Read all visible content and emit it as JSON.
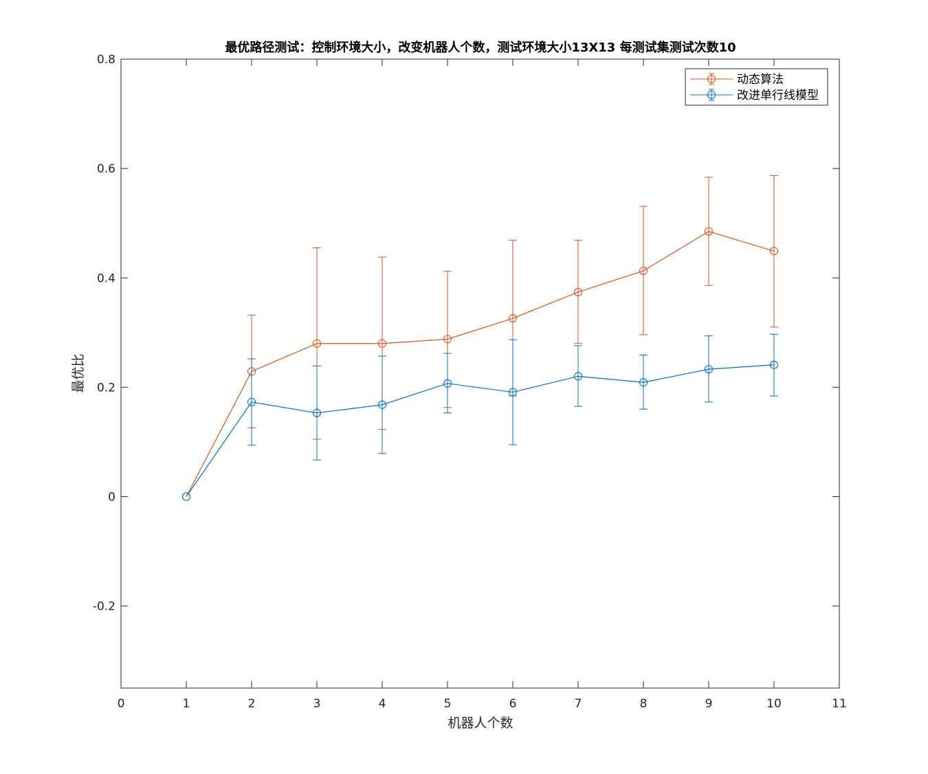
{
  "chart_data": {
    "type": "line",
    "title": "最优路径测试：控制环境大小，改变机器人个数，测试环境大小13X13 每测试集测试次数10",
    "xlabel": "机器人个数",
    "ylabel": "最优比",
    "xlim": [
      0,
      11
    ],
    "ylim": [
      -0.35,
      0.8
    ],
    "xticks": [
      0,
      1,
      2,
      3,
      4,
      5,
      6,
      7,
      8,
      9,
      10,
      11
    ],
    "xtick_labels": [
      "0",
      "1",
      "2",
      "3",
      "4",
      "5",
      "6",
      "7",
      "8",
      "9",
      "10",
      "11"
    ],
    "yticks": [
      -0.2,
      0,
      0.2,
      0.4,
      0.6,
      0.8
    ],
    "ytick_labels": [
      "-0.2",
      "0",
      "0.2",
      "0.4",
      "0.6",
      "0.8"
    ],
    "grid": false,
    "legend_position": "top-right",
    "x": [
      1,
      2,
      3,
      4,
      5,
      6,
      7,
      8,
      9,
      10
    ],
    "series": [
      {
        "name": "动态算法",
        "color": "#D95319",
        "values": [
          0,
          0.229,
          0.28,
          0.28,
          0.288,
          0.326,
          0.374,
          0.413,
          0.485,
          0.449
        ],
        "err_low": [
          0,
          0.126,
          0.105,
          0.123,
          0.163,
          0.184,
          0.28,
          0.296,
          0.386,
          0.31
        ],
        "err_high": [
          0,
          0.332,
          0.455,
          0.438,
          0.412,
          0.469,
          0.469,
          0.531,
          0.584,
          0.587
        ]
      },
      {
        "name": "改进单行线模型",
        "color": "#0072BD",
        "values": [
          0,
          0.173,
          0.153,
          0.168,
          0.207,
          0.191,
          0.22,
          0.209,
          0.233,
          0.241
        ],
        "err_low": [
          0,
          0.094,
          0.067,
          0.079,
          0.153,
          0.095,
          0.165,
          0.16,
          0.173,
          0.184
        ],
        "err_high": [
          0,
          0.252,
          0.239,
          0.257,
          0.262,
          0.287,
          0.276,
          0.259,
          0.294,
          0.297
        ]
      }
    ]
  }
}
